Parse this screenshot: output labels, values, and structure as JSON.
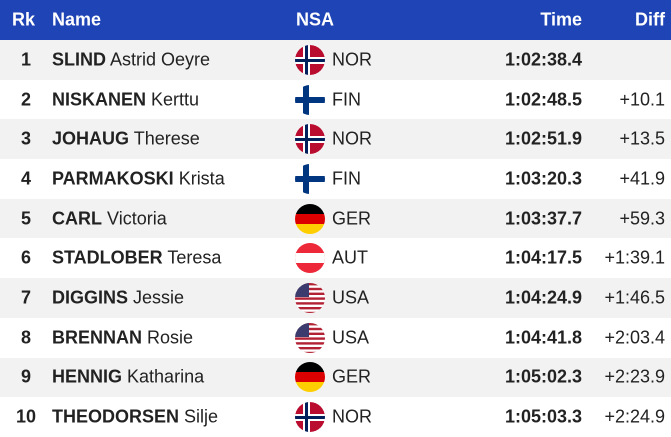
{
  "header": {
    "rank": "Rk",
    "name": "Name",
    "nsa": "NSA",
    "time": "Time",
    "diff": "Diff"
  },
  "rows": [
    {
      "rank": "1",
      "last": "SLIND",
      "first": "Astrid Oeyre",
      "nsa": "NOR",
      "time": "1:02:38.4"
    },
    {
      "rank": "2",
      "last": "NISKANEN",
      "first": "Kerttu",
      "nsa": "FIN",
      "time": "1:02:48.5",
      "diff": "+10.1"
    },
    {
      "rank": "3",
      "last": "JOHAUG",
      "first": "Therese",
      "nsa": "NOR",
      "time": "1:02:51.9",
      "diff": "+13.5"
    },
    {
      "rank": "4",
      "last": "PARMAKOSKI",
      "first": "Krista",
      "nsa": "FIN",
      "time": "1:03:20.3",
      "diff": "+41.9"
    },
    {
      "rank": "5",
      "last": "CARL",
      "first": "Victoria",
      "nsa": "GER",
      "time": "1:03:37.7",
      "diff": "+59.3"
    },
    {
      "rank": "6",
      "last": "STADLOBER",
      "first": "Teresa",
      "nsa": "AUT",
      "time": "1:04:17.5",
      "diff": "+1:39.1"
    },
    {
      "rank": "7",
      "last": "DIGGINS",
      "first": "Jessie",
      "nsa": "USA",
      "time": "1:04:24.9",
      "diff": "+1:46.5"
    },
    {
      "rank": "8",
      "last": "BRENNAN",
      "first": "Rosie",
      "nsa": "USA",
      "time": "1:04:41.8",
      "diff": "+2:03.4"
    },
    {
      "rank": "9",
      "last": "HENNIG",
      "first": "Katharina",
      "nsa": "GER",
      "time": "1:05:02.3",
      "diff": "+2:23.9"
    },
    {
      "rank": "10",
      "last": "THEODORSEN",
      "first": "Silje",
      "nsa": "NOR",
      "time": "1:05:03.3",
      "diff": "+2:24.9"
    }
  ]
}
